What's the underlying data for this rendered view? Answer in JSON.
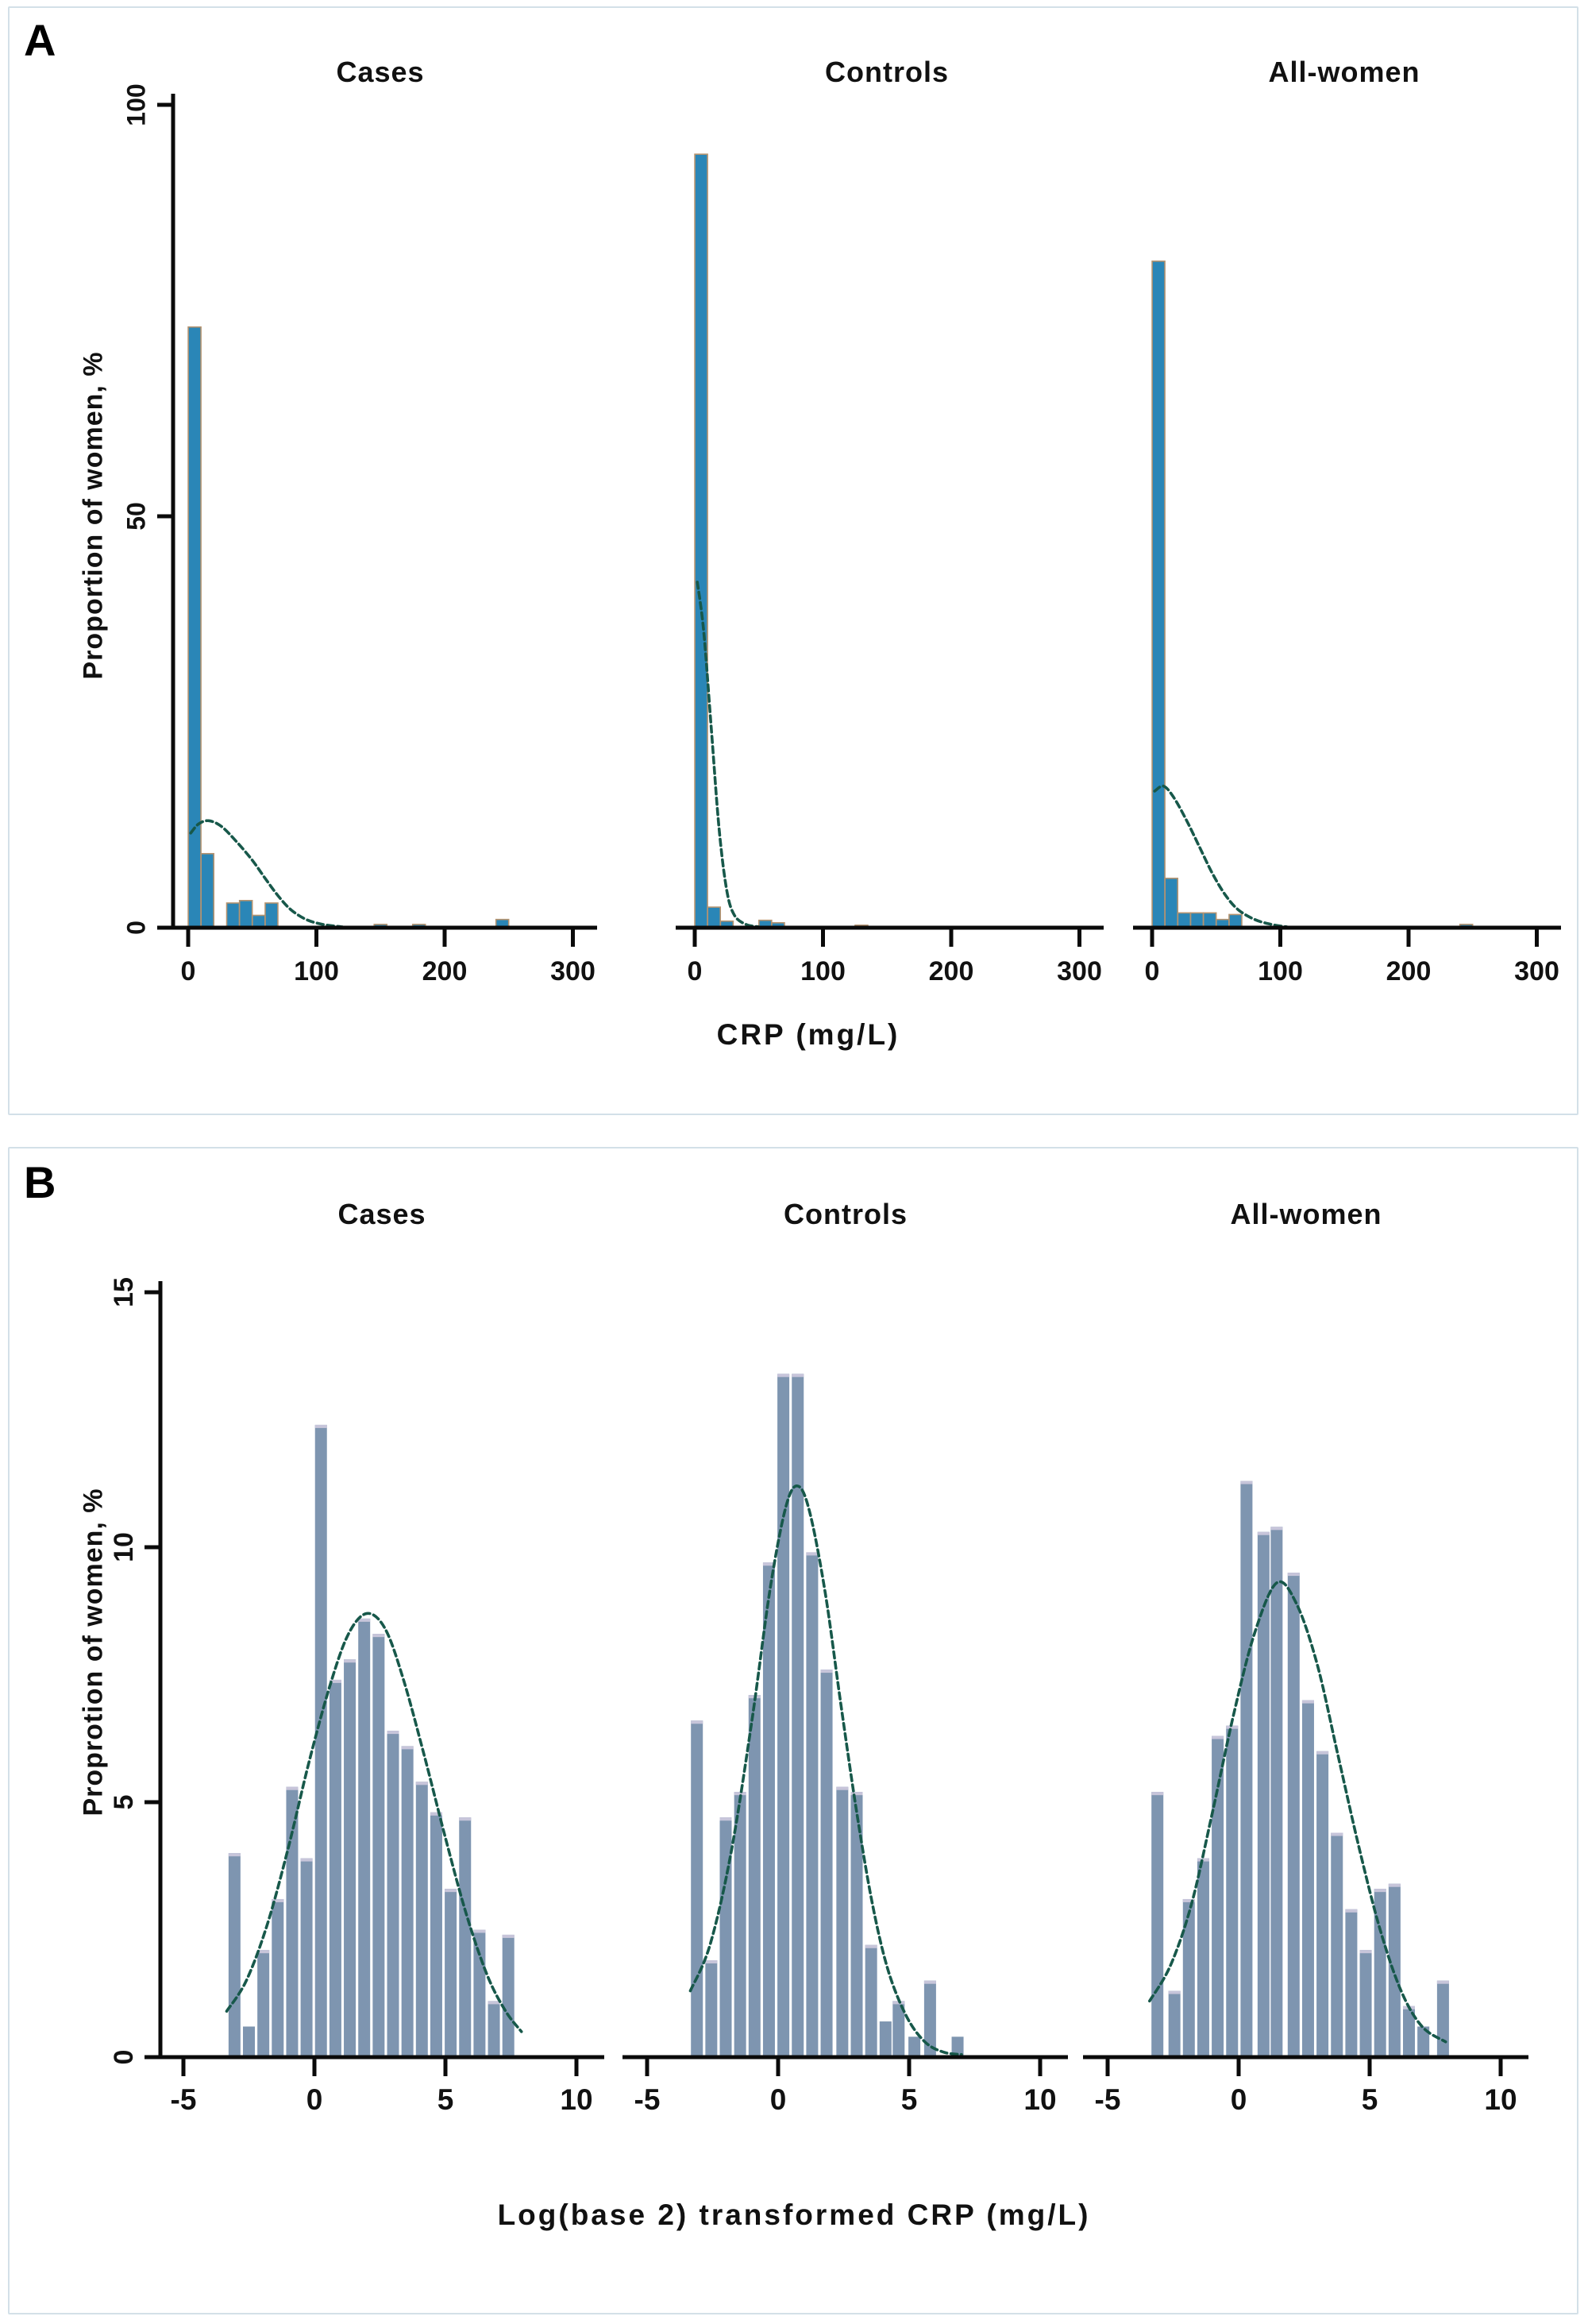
{
  "figure_colors": {
    "bar_a_fill": "#2a86b7",
    "bar_a_stroke": "#b5936f",
    "bar_b_fill": "#7e95b0",
    "bar_b_cap": "#c7c5da",
    "curve": "#17584a",
    "axis": "#0a0a0a",
    "panel_border": "#d3e0e8"
  },
  "chart_data": [
    {
      "type": "bar",
      "panel_label": "A",
      "ylabel": "Proportion of women, %",
      "xlabel": "CRP (mg/L)",
      "yticks": [
        0,
        50,
        100
      ],
      "xticks": [
        0,
        100,
        200,
        300
      ],
      "ylim": [
        0,
        103
      ],
      "xlim": [
        -15,
        320
      ],
      "bin_width": 10,
      "legend": "none",
      "grid": false,
      "subplots": [
        {
          "title": "Cases",
          "bars": {
            "x": [
              5,
              15,
              35,
              45,
              55,
              65,
              150,
              180,
              245
            ],
            "h": [
              73,
              9,
              3,
              3.3,
              1.5,
              3,
              0.4,
              0.4,
              1.0
            ]
          },
          "curve": [
            [
              2,
              11.5
            ],
            [
              8,
              12.6
            ],
            [
              16,
              13.0
            ],
            [
              26,
              12.3
            ],
            [
              38,
              10.4
            ],
            [
              50,
              8.2
            ],
            [
              60,
              6.0
            ],
            [
              70,
              3.9
            ],
            [
              80,
              2.2
            ],
            [
              92,
              1.0
            ],
            [
              105,
              0.4
            ],
            [
              120,
              0.1
            ]
          ]
        },
        {
          "title": "Controls",
          "bars": {
            "x": [
              5,
              15,
              25,
              55,
              65,
              130
            ],
            "h": [
              94,
              2.5,
              0.8,
              0.9,
              0.6,
              0.3
            ]
          },
          "curve": [
            [
              2,
              42
            ],
            [
              7,
              36
            ],
            [
              13,
              24
            ],
            [
              19,
              12
            ],
            [
              25,
              4.5
            ],
            [
              31,
              1.5
            ],
            [
              40,
              0.4
            ],
            [
              50,
              0.1
            ]
          ]
        },
        {
          "title": "All-women",
          "bars": {
            "x": [
              5,
              15,
              25,
              35,
              45,
              55,
              65,
              245
            ],
            "h": [
              81,
              6,
              1.8,
              1.8,
              1.8,
              1.0,
              1.6,
              0.4
            ]
          },
          "curve": [
            [
              2,
              16.6
            ],
            [
              9,
              17.2
            ],
            [
              17,
              15.8
            ],
            [
              27,
              13.0
            ],
            [
              37,
              9.8
            ],
            [
              47,
              6.6
            ],
            [
              57,
              4.0
            ],
            [
              67,
              2.2
            ],
            [
              80,
              1.0
            ],
            [
              93,
              0.4
            ],
            [
              105,
              0.1
            ]
          ]
        }
      ]
    },
    {
      "type": "bar",
      "panel_label": "B",
      "ylabel": "Proprotion of women, %",
      "xlabel": "Log(base 2) transformed CRP (mg/L)",
      "yticks": [
        0,
        5,
        10,
        15
      ],
      "xticks": [
        -5,
        0,
        5,
        10
      ],
      "ylim": [
        0,
        15.5
      ],
      "xlim": [
        -6,
        11
      ],
      "bin_width": 0.55,
      "legend": "none",
      "grid": false,
      "subplots": [
        {
          "title": "Cases",
          "bars": {
            "x": [
              -3.05,
              -2.5,
              -1.95,
              -1.4,
              -0.85,
              -0.3,
              0.25,
              0.8,
              1.35,
              1.9,
              2.45,
              3.0,
              3.55,
              4.1,
              4.65,
              5.2,
              5.75,
              6.3,
              6.85,
              7.4
            ],
            "h": [
              4.0,
              0.6,
              2.1,
              3.1,
              5.3,
              3.9,
              12.4,
              7.4,
              7.8,
              8.6,
              8.3,
              6.4,
              6.1,
              5.4,
              4.8,
              3.3,
              4.7,
              2.5,
              1.1,
              2.4
            ]
          },
          "curve": [
            [
              -3.35,
              0.9
            ],
            [
              -2.6,
              1.5
            ],
            [
              -1.8,
              2.6
            ],
            [
              -1.0,
              4.1
            ],
            [
              -0.2,
              5.8
            ],
            [
              0.6,
              7.3
            ],
            [
              1.3,
              8.3
            ],
            [
              2.0,
              8.7
            ],
            [
              2.7,
              8.4
            ],
            [
              3.4,
              7.4
            ],
            [
              4.2,
              5.9
            ],
            [
              5.0,
              4.3
            ],
            [
              5.8,
              2.8
            ],
            [
              6.6,
              1.6
            ],
            [
              7.3,
              0.9
            ],
            [
              7.9,
              0.5
            ]
          ]
        },
        {
          "title": "Controls",
          "bars": {
            "x": [
              -3.1,
              -2.55,
              -2.0,
              -1.45,
              -0.9,
              -0.35,
              0.2,
              0.75,
              1.3,
              1.85,
              2.45,
              3.0,
              3.55,
              4.1,
              4.6,
              5.2,
              5.8,
              6.85
            ],
            "h": [
              6.6,
              1.9,
              4.7,
              5.2,
              7.1,
              9.7,
              13.4,
              13.4,
              9.9,
              7.6,
              5.3,
              5.2,
              2.2,
              0.7,
              1.1,
              0.4,
              1.5,
              0.4
            ]
          },
          "curve": [
            [
              -3.35,
              1.3
            ],
            [
              -2.6,
              2.2
            ],
            [
              -1.8,
              4.0
            ],
            [
              -1.0,
              6.6
            ],
            [
              -0.3,
              9.2
            ],
            [
              0.3,
              10.8
            ],
            [
              0.75,
              11.2
            ],
            [
              1.2,
              10.7
            ],
            [
              1.8,
              9.1
            ],
            [
              2.4,
              6.9
            ],
            [
              3.0,
              4.8
            ],
            [
              3.6,
              3.0
            ],
            [
              4.2,
              1.7
            ],
            [
              4.9,
              0.8
            ],
            [
              5.6,
              0.3
            ],
            [
              6.3,
              0.1
            ],
            [
              7.0,
              0.05
            ]
          ]
        },
        {
          "title": "All-women",
          "bars": {
            "x": [
              -3.1,
              -2.45,
              -1.9,
              -1.35,
              -0.8,
              -0.25,
              0.3,
              0.95,
              1.45,
              2.1,
              2.65,
              3.2,
              3.75,
              4.3,
              4.85,
              5.4,
              5.95,
              6.5,
              7.05,
              7.8
            ],
            "h": [
              5.2,
              1.3,
              3.1,
              3.9,
              6.3,
              6.5,
              11.3,
              10.3,
              10.4,
              9.5,
              7.0,
              6.0,
              4.4,
              2.9,
              2.1,
              3.3,
              3.4,
              1.0,
              0.6,
              1.5
            ]
          },
          "curve": [
            [
              -3.4,
              1.1
            ],
            [
              -2.6,
              1.8
            ],
            [
              -1.8,
              3.0
            ],
            [
              -1.0,
              4.8
            ],
            [
              -0.2,
              6.7
            ],
            [
              0.6,
              8.3
            ],
            [
              1.45,
              9.3
            ],
            [
              2.2,
              8.9
            ],
            [
              3.0,
              7.7
            ],
            [
              3.8,
              5.9
            ],
            [
              4.6,
              4.1
            ],
            [
              5.4,
              2.5
            ],
            [
              6.2,
              1.3
            ],
            [
              7.0,
              0.6
            ],
            [
              7.9,
              0.3
            ]
          ]
        }
      ]
    }
  ]
}
